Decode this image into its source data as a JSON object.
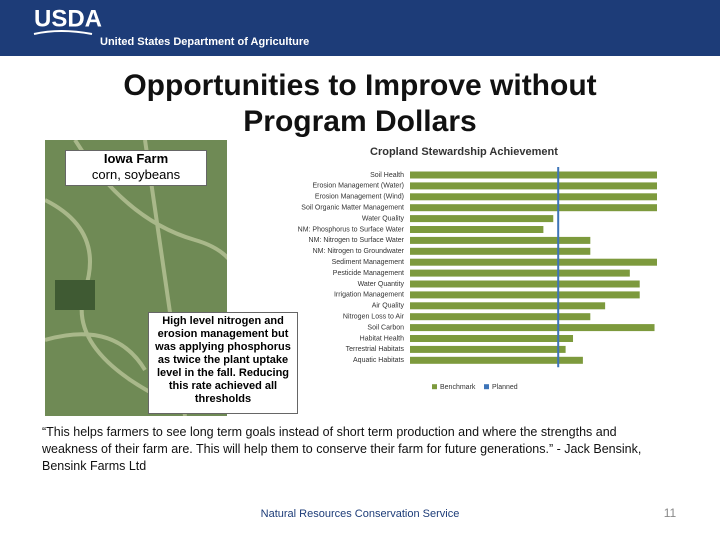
{
  "header": {
    "logo": "USDA",
    "agency": "United States Department of Agriculture"
  },
  "title": "Opportunities to Improve without Program Dollars",
  "photo_label": {
    "title": "Iowa Farm",
    "subtitle": "corn, soybeans"
  },
  "callout": "High level nitrogen and erosion management but was applying phosphorus as twice the plant uptake level in the fall.  Reducing this rate achieved all thresholds",
  "chart": {
    "type": "bar",
    "title": "Cropland Stewardship Achievement",
    "categories": [
      "Soil Health",
      "Erosion Management (Water)",
      "Erosion Management (Wind)",
      "Soil Organic Matter Management",
      "Water Quality",
      "NM: Phosphorus to Surface Water",
      "NM: Nitrogen to Surface Water",
      "NM: Nitrogen to Groundwater",
      "Sediment Management",
      "Pesticide Management",
      "Water Quantity",
      "Irrigation Management",
      "Air Quality",
      "Nitrogen Loss to Air",
      "Soil Carbon",
      "Habitat Health",
      "Terrestrial Habitats",
      "Aquatic Habitats"
    ],
    "series": [
      {
        "name": "Benchmark",
        "color": "#7d9a3d",
        "values": [
          100,
          100,
          100,
          100,
          58,
          54,
          73,
          73,
          100,
          89,
          93,
          93,
          79,
          73,
          99,
          66,
          63,
          70
        ]
      }
    ],
    "reference_line": {
      "name": "Planned",
      "color": "#3e74b8",
      "value": 60
    },
    "xlim": [
      0,
      100
    ]
  },
  "quote": "“This helps farmers to see long term goals instead of short term production and where the strengths and weakness of their farm are.  This will help them to conserve their farm for future generations.” - Jack Bensink, Bensink Farms Ltd",
  "footer": "Natural Resources Conservation Service",
  "page_number": 11
}
